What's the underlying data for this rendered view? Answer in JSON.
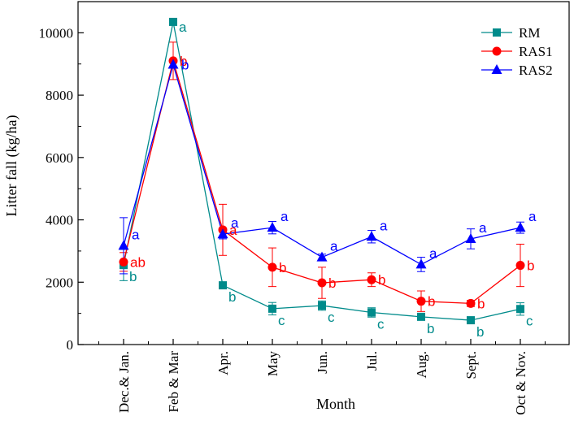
{
  "chart_data": {
    "type": "line",
    "title": "",
    "xlabel": "Month",
    "ylabel": "Litter fall (kg/ha)",
    "categories": [
      "Dec.& Jan.",
      "Feb & Mar",
      "Apr.",
      "May",
      "Jun.",
      "Jul.",
      "Aug.",
      "Sept.",
      "Oct & Nov."
    ],
    "ylim": [
      0,
      11000
    ],
    "yticks": [
      0,
      2000,
      4000,
      6000,
      8000,
      10000
    ],
    "ytick_labels": [
      "0",
      "2000",
      "4000",
      "6000",
      "8000",
      "10000"
    ],
    "legend_position": "top-right",
    "series": [
      {
        "name": "RM",
        "color": "#008b8b",
        "marker": "square",
        "values": [
          2550,
          10350,
          1900,
          1150,
          1250,
          1030,
          890,
          780,
          1140
        ],
        "errors": [
          500,
          0,
          0,
          200,
          150,
          150,
          100,
          80,
          200
        ],
        "labels": [
          "b",
          "a",
          "b",
          "c",
          "c",
          "c",
          "b",
          "b",
          "c"
        ]
      },
      {
        "name": "RAS1",
        "color": "#ff0000",
        "marker": "circle",
        "values": [
          2650,
          9100,
          3680,
          2480,
          1980,
          2080,
          1390,
          1320,
          2540
        ],
        "errors": [
          300,
          600,
          820,
          620,
          500,
          220,
          330,
          100,
          680
        ],
        "labels": [
          "ab",
          "b",
          "a",
          "b",
          "b",
          "b",
          "b",
          "b",
          "b"
        ]
      },
      {
        "name": "RAS2",
        "color": "#0000ff",
        "marker": "triangle",
        "values": [
          3170,
          8980,
          3540,
          3750,
          2800,
          3460,
          2570,
          3390,
          3750
        ],
        "errors": [
          900,
          0,
          150,
          200,
          100,
          200,
          230,
          320,
          180
        ],
        "labels": [
          "a",
          "b",
          "a",
          "a",
          "a",
          "a",
          "a",
          "a",
          "a"
        ]
      }
    ]
  }
}
